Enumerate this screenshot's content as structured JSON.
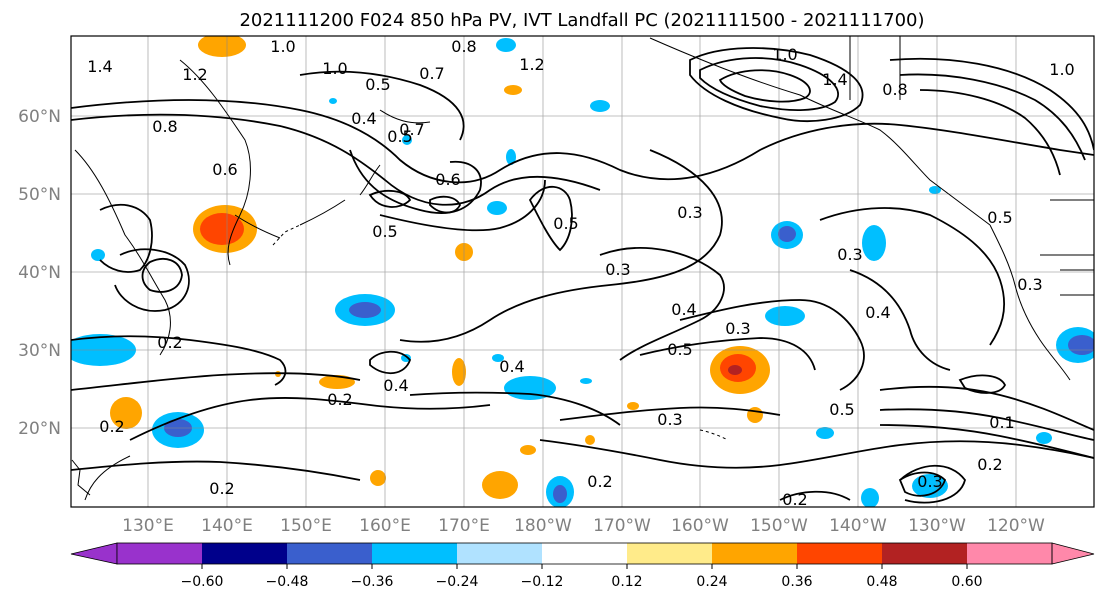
{
  "title": "2021111200 F024 850 hPa PV, IVT Landfall PC (2021111500 - 2021111700)",
  "map": {
    "lat_labels": [
      "60°N",
      "50°N",
      "40°N",
      "30°N",
      "20°N"
    ],
    "lon_labels": [
      "130°E",
      "140°E",
      "150°E",
      "160°E",
      "170°E",
      "180°W",
      "170°W",
      "160°W",
      "150°W",
      "140°W",
      "130°W",
      "120°W"
    ],
    "contour_labels": [
      "1.4",
      "1.2",
      "1.0",
      "0.8",
      "1.2",
      "1.0",
      "0.5",
      "0.7",
      "0.4",
      "0.8",
      "0.6",
      "0.5",
      "0.6",
      "0.5",
      "0.5",
      "0.3",
      "0.3",
      "0.4",
      "0.3",
      "0.5",
      "0.3",
      "0.4",
      "0.2",
      "0.4",
      "0.2",
      "0.4",
      "0.3",
      "0.5",
      "0.1",
      "0.2",
      "0.2",
      "0.2",
      "0.3",
      "0.2",
      "1.0",
      "1.4",
      "0.8",
      "1.0",
      "0.5",
      "0.3",
      "0.7",
      "0.2"
    ]
  },
  "colorbar": {
    "ticks": [
      "−0.60",
      "−0.48",
      "−0.36",
      "−0.24",
      "−0.12",
      "0.12",
      "0.24",
      "0.36",
      "0.48",
      "0.60"
    ],
    "colors": [
      "#9932cc",
      "#00008b",
      "#3a5fcd",
      "#00bfff",
      "#b0e2ff",
      "#ffffff",
      "#ffeb8a",
      "#ffa500",
      "#ff4500",
      "#b22222",
      "#ff88aa"
    ]
  },
  "colors": {
    "positive_strong": "#ff4500",
    "positive_mid": "#ffa500",
    "positive_weak": "#ffeb8a",
    "negative_strong": "#3a5fcd",
    "negative_mid": "#00bfff",
    "negative_weak": "#b0e2ff",
    "grid": "#888888",
    "contour": "#000000"
  }
}
